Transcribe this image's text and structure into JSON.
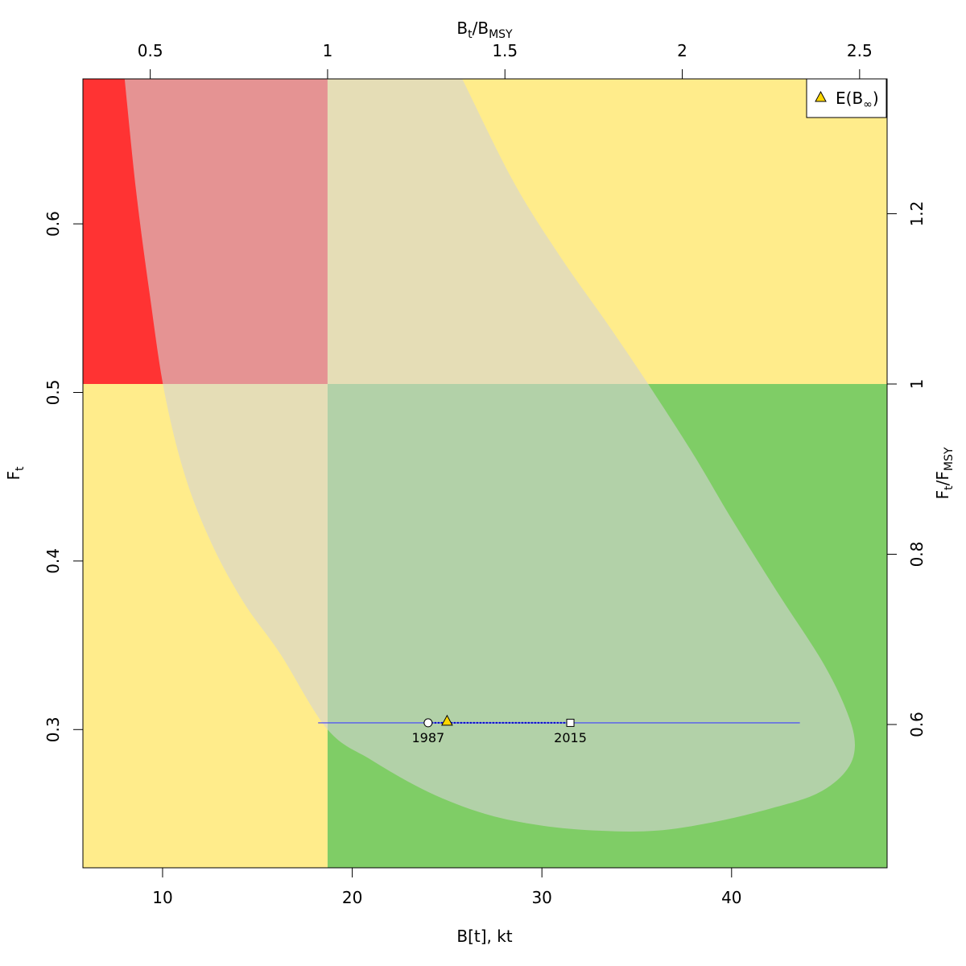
{
  "chart_data": {
    "type": "scatter",
    "title": "",
    "xlabel": "B[t], kt",
    "ylabel": "F",
    "ylabel_sub": "t",
    "x2label": {
      "main": "B",
      "sub1": "t",
      "sep": "/B",
      "sub2": "MSY"
    },
    "y2label": {
      "main": "F",
      "sub1": "t",
      "sep": "/F",
      "sub2": "MSY"
    },
    "xlim": [
      5.8,
      48.2
    ],
    "ylim": [
      0.218,
      0.686
    ],
    "bmsy": 18.7,
    "fmsy": 0.505,
    "x_ticks": [
      "10",
      "20",
      "30",
      "40"
    ],
    "y_ticks": [
      "0.3",
      "0.4",
      "0.5",
      "0.6"
    ],
    "x2_ticks": [
      "0.5",
      "1",
      "1.5",
      "2",
      "2.5"
    ],
    "y2_ticks": [
      "0.6",
      "0.8",
      "1",
      "1.2"
    ],
    "x_tick_values": [
      10,
      20,
      30,
      40
    ],
    "y_tick_values": [
      0.3,
      0.4,
      0.5,
      0.6
    ],
    "x2_tick_values": [
      0.5,
      1,
      1.5,
      2,
      2.5
    ],
    "y2_tick_values": [
      0.6,
      0.8,
      1.0,
      1.2
    ],
    "zones": [
      {
        "name": "red",
        "color": "#FF3333"
      },
      {
        "name": "yellow",
        "color": "#FFEC8B"
      },
      {
        "name": "green",
        "color": "#7FCD66"
      }
    ],
    "confidence_region": {
      "color": "#D3D3D3",
      "opacity": 0.6,
      "points": [
        [
          8.0,
          0.686
        ],
        [
          8.6,
          0.62
        ],
        [
          9.3,
          0.56
        ],
        [
          10.1,
          0.5
        ],
        [
          11.2,
          0.45
        ],
        [
          12.6,
          0.41
        ],
        [
          14.3,
          0.375
        ],
        [
          16.2,
          0.345
        ],
        [
          18.7,
          0.3
        ],
        [
          21.0,
          0.282
        ],
        [
          24.0,
          0.263
        ],
        [
          27.0,
          0.25
        ],
        [
          30.0,
          0.243
        ],
        [
          33.0,
          0.24
        ],
        [
          36.0,
          0.24
        ],
        [
          39.0,
          0.245
        ],
        [
          42.0,
          0.253
        ],
        [
          44.5,
          0.262
        ],
        [
          46.0,
          0.275
        ],
        [
          46.5,
          0.29
        ],
        [
          46.1,
          0.31
        ],
        [
          44.8,
          0.34
        ],
        [
          42.5,
          0.38
        ],
        [
          40.0,
          0.425
        ],
        [
          38.0,
          0.463
        ],
        [
          35.6,
          0.505
        ],
        [
          33.5,
          0.54
        ],
        [
          31.0,
          0.58
        ],
        [
          28.5,
          0.625
        ],
        [
          25.8,
          0.686
        ]
      ]
    },
    "trajectory": {
      "color": "#4040FF",
      "points": [
        {
          "x": 24.0,
          "y": 0.304,
          "label": "1987",
          "marker": "circle"
        },
        {
          "x": 31.5,
          "y": 0.304,
          "label": "2015",
          "marker": "square"
        }
      ]
    },
    "expected_equilibrium": {
      "x": 25.0,
      "y": 0.305,
      "color": "#FFD700",
      "ci_x": [
        18.2,
        43.6
      ]
    },
    "legend": {
      "position": "top-right",
      "label": "E(B",
      "symbol": "∞",
      "close": ")"
    }
  }
}
